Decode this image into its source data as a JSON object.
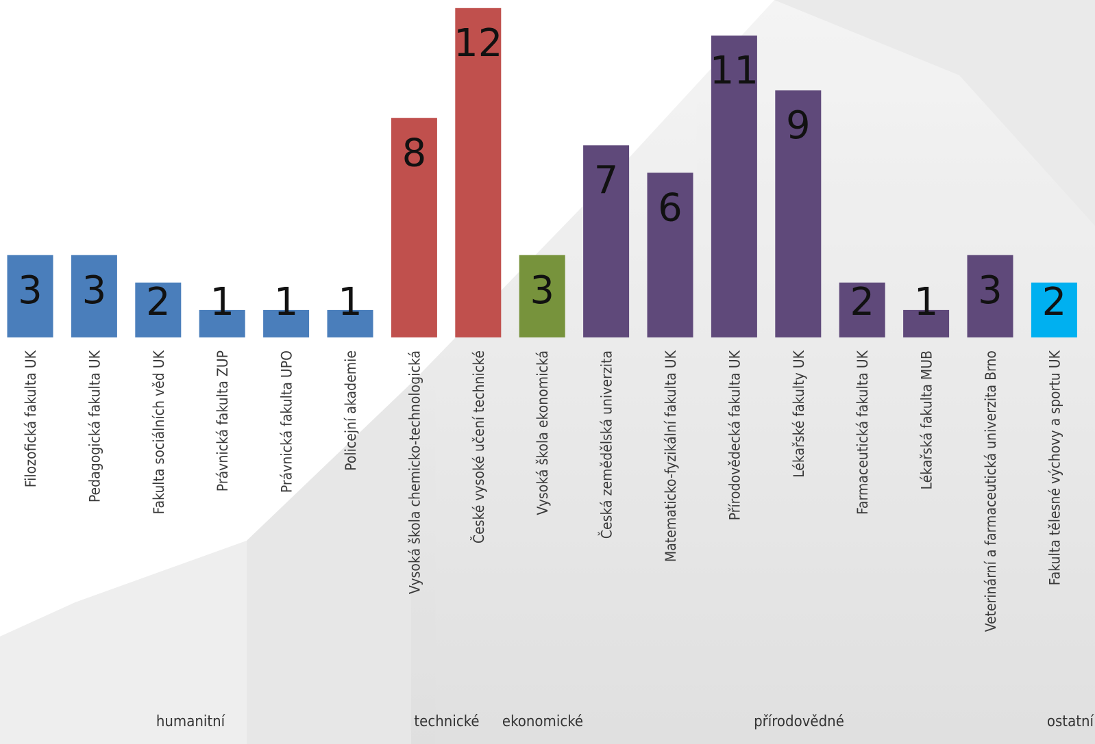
{
  "chart_data": {
    "type": "bar",
    "categories": [
      "Filozofická fakulta UK",
      "Pedagogická fakulta UK",
      "Fakulta sociálních věd UK",
      "Právnická fakulta ZUP",
      "Právnická fakulta UPO",
      "Policejní akademie",
      "Vysoká škola chemicko-technologická",
      "České vysoké učení technické",
      "Vysoká škola ekonomická",
      "Česká zemědělská univerzita",
      "Matematicko-fyzikální fakulta UK",
      "Přírodovědecká fakulta UK",
      "Lékařské fakulty UK",
      "Farmaceutická fakulta UK",
      "Lékařská fakulta MUB",
      "Veterinární a farmaceutická univerzita Brno",
      "Fakulta tělesné výchovy a sportu UK"
    ],
    "values": [
      3,
      3,
      2,
      1,
      1,
      1,
      8,
      12,
      3,
      7,
      6,
      11,
      9,
      2,
      1,
      3,
      2
    ],
    "colors": [
      "#4a7ebb",
      "#4a7ebb",
      "#4a7ebb",
      "#4a7ebb",
      "#4a7ebb",
      "#4a7ebb",
      "#c0504d",
      "#c0504d",
      "#77933c",
      "#5f497a",
      "#5f497a",
      "#5f497a",
      "#5f497a",
      "#5f497a",
      "#5f497a",
      "#5f497a",
      "#00b0f0"
    ],
    "groups": [
      "humanitní",
      "technické",
      "ekonomické",
      "přírodovědné",
      "ostatní"
    ]
  }
}
